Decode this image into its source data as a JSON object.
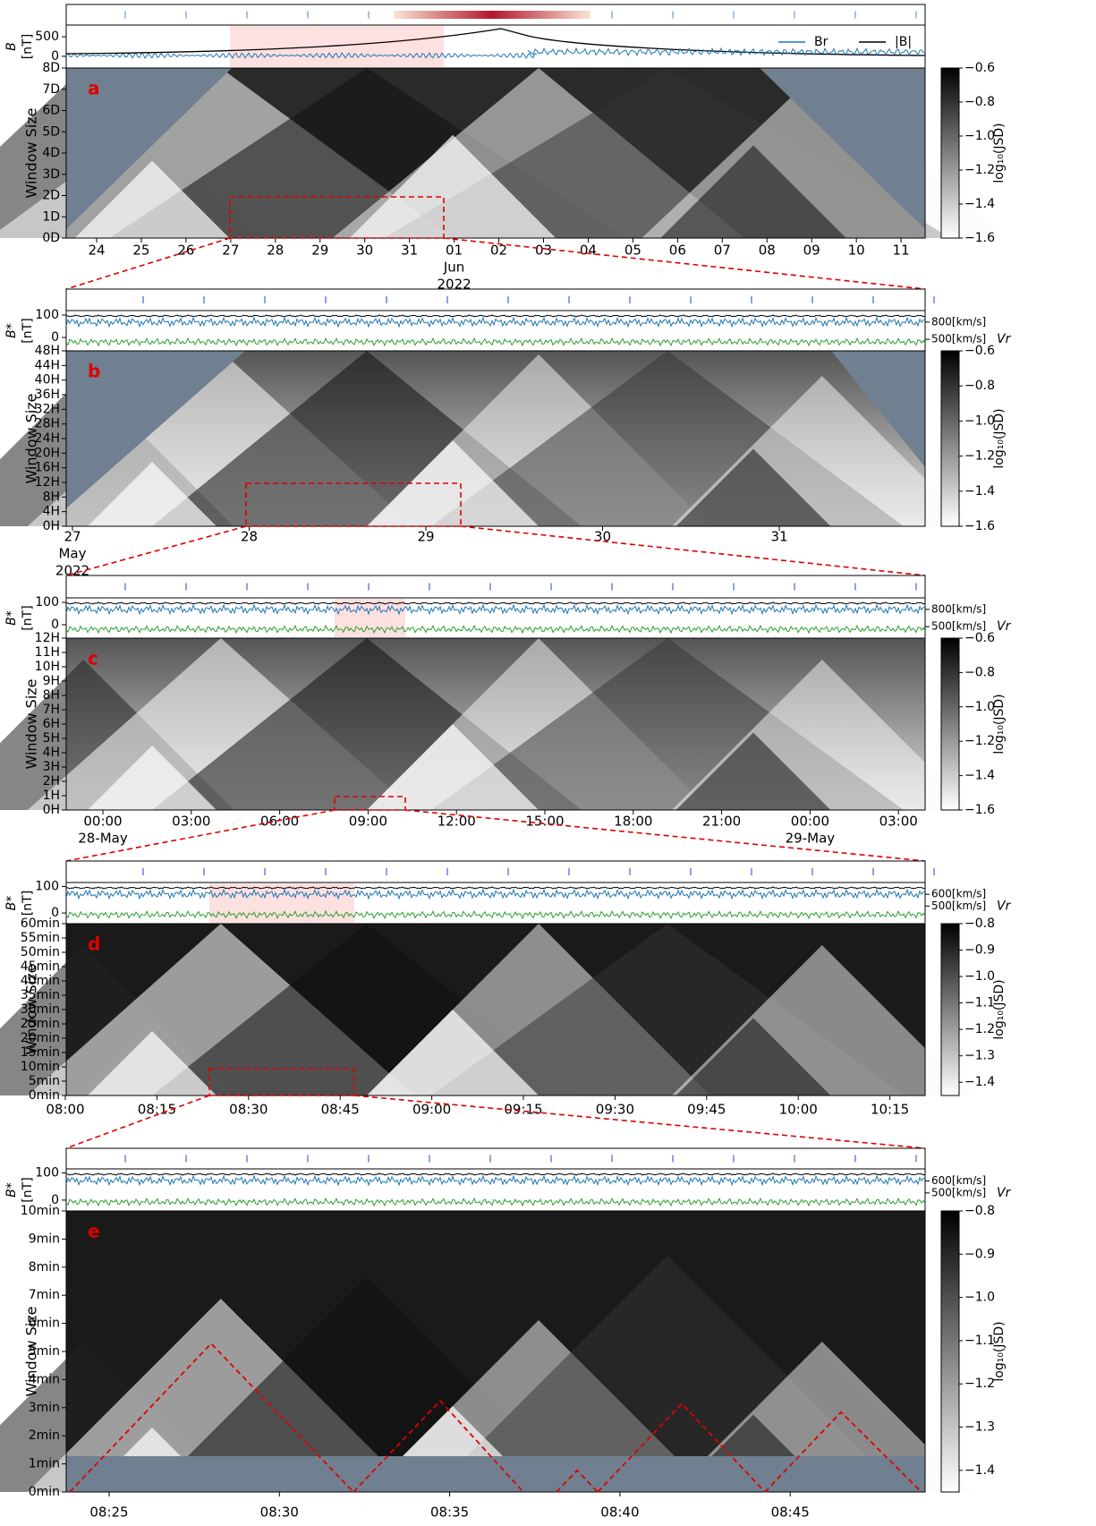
{
  "chart_data": [
    {
      "type": "heatmap",
      "panel_label": "a",
      "trace_ylabel": [
        "B",
        "[nT]"
      ],
      "trace_yticks": [
        0,
        500
      ],
      "trace_ylim": [
        -300,
        800
      ],
      "series": [
        {
          "name": "Br",
          "color": "#1f77b4"
        },
        {
          "name": "|B|",
          "color": "#000000"
        }
      ],
      "ylabel": "Window Size",
      "ylim": [
        0,
        8
      ],
      "yticks": [
        {
          "value": 0,
          "label": "0D"
        },
        {
          "value": 1,
          "label": "1D"
        },
        {
          "value": 2,
          "label": "2D"
        },
        {
          "value": 3,
          "label": "3D"
        },
        {
          "value": 4,
          "label": "4D"
        },
        {
          "value": 5,
          "label": "5D"
        },
        {
          "value": 6,
          "label": "6D"
        },
        {
          "value": 7,
          "label": "7D"
        },
        {
          "value": 8,
          "label": "8D"
        }
      ],
      "x_tick_labels": [
        "24",
        "25",
        "26",
        "27",
        "28",
        "29",
        "30",
        "31",
        "01",
        "02",
        "03",
        "04",
        "05",
        "06",
        "07",
        "08",
        "09",
        "10",
        "11"
      ],
      "x_tick_sublabels": [
        null,
        null,
        null,
        null,
        null,
        null,
        null,
        null,
        [
          "Jun",
          "2022"
        ],
        null,
        null,
        null,
        null,
        null,
        null,
        null,
        null,
        null,
        null
      ],
      "colorbar": {
        "label": "log₁₀(JSD)",
        "lim": [
          -1.6,
          -0.6
        ],
        "ticks": [
          {
            "value": -0.6,
            "label": "−0.6"
          },
          {
            "value": -0.8,
            "label": "−0.8"
          },
          {
            "value": -1.0,
            "label": "−1.0"
          },
          {
            "value": -1.2,
            "label": "−1.2"
          },
          {
            "value": -1.4,
            "label": "−1.4"
          },
          {
            "value": -1.6,
            "label": "−1.6"
          }
        ]
      }
    },
    {
      "type": "heatmap",
      "panel_label": "b",
      "trace_ylabel": [
        "B*",
        "[nT]"
      ],
      "trace_yticks": [
        0,
        100
      ],
      "trace_ylim": [
        -60,
        120
      ],
      "trace_y2label": "Vr",
      "trace_y2ticks": [
        {
          "value": 800,
          "label": "800[km/s]"
        },
        {
          "value": 500,
          "label": "500[km/s]"
        }
      ],
      "trace_y2lim": [
        300,
        1000
      ],
      "ylabel": "Window Size",
      "ylim": [
        0,
        48
      ],
      "yticks": [
        {
          "value": 0,
          "label": "0H"
        },
        {
          "value": 4,
          "label": "4H"
        },
        {
          "value": 8,
          "label": "8H"
        },
        {
          "value": 12,
          "label": "12H"
        },
        {
          "value": 16,
          "label": "16H"
        },
        {
          "value": 20,
          "label": "20H"
        },
        {
          "value": 24,
          "label": "24H"
        },
        {
          "value": 28,
          "label": "28H"
        },
        {
          "value": 32,
          "label": "32H"
        },
        {
          "value": 36,
          "label": "36H"
        },
        {
          "value": 40,
          "label": "40H"
        },
        {
          "value": 44,
          "label": "44H"
        },
        {
          "value": 48,
          "label": "48H"
        }
      ],
      "x_tick_labels": [
        "27",
        "28",
        "29",
        "30",
        "31"
      ],
      "x_tick_sublabels": [
        [
          "May",
          "2022"
        ],
        null,
        null,
        null,
        null
      ],
      "colorbar": {
        "label": "log₁₀(JSD)",
        "lim": [
          -1.6,
          -0.6
        ],
        "ticks": [
          {
            "value": -0.6,
            "label": "−0.6"
          },
          {
            "value": -0.8,
            "label": "−0.8"
          },
          {
            "value": -1.0,
            "label": "−1.0"
          },
          {
            "value": -1.2,
            "label": "−1.2"
          },
          {
            "value": -1.4,
            "label": "−1.4"
          },
          {
            "value": -1.6,
            "label": "−1.6"
          }
        ]
      }
    },
    {
      "type": "heatmap",
      "panel_label": "c",
      "trace_ylabel": [
        "B*",
        "[nT]"
      ],
      "trace_yticks": [
        0,
        100
      ],
      "trace_ylim": [
        -60,
        120
      ],
      "trace_y2label": "Vr",
      "trace_y2ticks": [
        {
          "value": 800,
          "label": "800[km/s]"
        },
        {
          "value": 500,
          "label": "500[km/s]"
        }
      ],
      "trace_y2lim": [
        300,
        1000
      ],
      "ylabel": "Window Size",
      "ylim": [
        0,
        12
      ],
      "yticks": [
        {
          "value": 0,
          "label": "0H"
        },
        {
          "value": 1,
          "label": "1H"
        },
        {
          "value": 2,
          "label": "2H"
        },
        {
          "value": 3,
          "label": "3H"
        },
        {
          "value": 4,
          "label": "4H"
        },
        {
          "value": 5,
          "label": "5H"
        },
        {
          "value": 6,
          "label": "6H"
        },
        {
          "value": 7,
          "label": "7H"
        },
        {
          "value": 8,
          "label": "8H"
        },
        {
          "value": 9,
          "label": "9H"
        },
        {
          "value": 10,
          "label": "10H"
        },
        {
          "value": 11,
          "label": "11H"
        },
        {
          "value": 12,
          "label": "12H"
        }
      ],
      "x_tick_labels": [
        "00:00",
        "03:00",
        "06:00",
        "09:00",
        "12:00",
        "15:00",
        "18:00",
        "21:00",
        "00:00",
        "03:00"
      ],
      "x_tick_sublabels": [
        [
          "28-May"
        ],
        null,
        null,
        null,
        null,
        null,
        null,
        null,
        [
          "29-May"
        ],
        null
      ],
      "colorbar": {
        "label": "log₁₀(JSD)",
        "lim": [
          -1.6,
          -0.6
        ],
        "ticks": [
          {
            "value": -0.6,
            "label": "−0.6"
          },
          {
            "value": -0.8,
            "label": "−0.8"
          },
          {
            "value": -1.0,
            "label": "−1.0"
          },
          {
            "value": -1.2,
            "label": "−1.2"
          },
          {
            "value": -1.4,
            "label": "−1.4"
          },
          {
            "value": -1.6,
            "label": "−1.6"
          }
        ]
      }
    },
    {
      "type": "heatmap",
      "panel_label": "d",
      "trace_ylabel": [
        "B*",
        "[nT]"
      ],
      "trace_yticks": [
        0,
        100
      ],
      "trace_ylim": [
        -40,
        115
      ],
      "trace_y2label": "Vr",
      "trace_y2ticks": [
        {
          "value": 600,
          "label": "600[km/s]"
        },
        {
          "value": 500,
          "label": "500[km/s]"
        }
      ],
      "trace_y2lim": [
        350,
        700
      ],
      "ylabel": "Window Size",
      "ylim": [
        0,
        60
      ],
      "yticks": [
        {
          "value": 0,
          "label": "0min"
        },
        {
          "value": 5,
          "label": "5min"
        },
        {
          "value": 10,
          "label": "10min"
        },
        {
          "value": 15,
          "label": "15min"
        },
        {
          "value": 20,
          "label": "20min"
        },
        {
          "value": 25,
          "label": "25min"
        },
        {
          "value": 30,
          "label": "30min"
        },
        {
          "value": 35,
          "label": "35min"
        },
        {
          "value": 40,
          "label": "40min"
        },
        {
          "value": 45,
          "label": "45min"
        },
        {
          "value": 50,
          "label": "50min"
        },
        {
          "value": 55,
          "label": "55min"
        },
        {
          "value": 60,
          "label": "60min"
        }
      ],
      "x_tick_labels": [
        "08:00",
        "08:15",
        "08:30",
        "08:45",
        "09:00",
        "09:15",
        "09:30",
        "09:45",
        "10:00",
        "10:15"
      ],
      "colorbar": {
        "label": "log₁₀(JSD)",
        "lim": [
          -1.45,
          -0.8
        ],
        "ticks": [
          {
            "value": -0.8,
            "label": "−0.8"
          },
          {
            "value": -0.9,
            "label": "−0.9"
          },
          {
            "value": -1.0,
            "label": "−1.0"
          },
          {
            "value": -1.1,
            "label": "−1.1"
          },
          {
            "value": -1.2,
            "label": "−1.2"
          },
          {
            "value": -1.3,
            "label": "−1.3"
          },
          {
            "value": -1.4,
            "label": "−1.4"
          }
        ]
      }
    },
    {
      "type": "heatmap",
      "panel_label": "e",
      "trace_ylabel": [
        "B*",
        "[nT]"
      ],
      "trace_yticks": [
        0,
        100
      ],
      "trace_ylim": [
        -40,
        115
      ],
      "trace_y2label": "Vr",
      "trace_y2ticks": [
        {
          "value": 600,
          "label": "600[km/s]"
        },
        {
          "value": 500,
          "label": "500[km/s]"
        }
      ],
      "trace_y2lim": [
        350,
        700
      ],
      "ylabel": "Window Size",
      "ylim": [
        0,
        10
      ],
      "yticks": [
        {
          "value": 0,
          "label": "0min"
        },
        {
          "value": 1,
          "label": "1min"
        },
        {
          "value": 2,
          "label": "2min"
        },
        {
          "value": 3,
          "label": "3min"
        },
        {
          "value": 4,
          "label": "4min"
        },
        {
          "value": 5,
          "label": "5min"
        },
        {
          "value": 6,
          "label": "6min"
        },
        {
          "value": 7,
          "label": "7min"
        },
        {
          "value": 8,
          "label": "8min"
        },
        {
          "value": 9,
          "label": "9min"
        },
        {
          "value": 10,
          "label": "10min"
        }
      ],
      "x_tick_labels": [
        "08:25",
        "08:30",
        "08:35",
        "08:40",
        "08:45"
      ],
      "colorbar": {
        "label": "log₁₀(JSD)",
        "lim": [
          -1.45,
          -0.8
        ],
        "ticks": [
          {
            "value": -0.8,
            "label": "−0.8"
          },
          {
            "value": -0.9,
            "label": "−0.9"
          },
          {
            "value": -1.0,
            "label": "−1.0"
          },
          {
            "value": -1.1,
            "label": "−1.1"
          },
          {
            "value": -1.2,
            "label": "−1.2"
          },
          {
            "value": -1.3,
            "label": "−1.3"
          },
          {
            "value": -1.4,
            "label": "−1.4"
          }
        ]
      }
    }
  ]
}
